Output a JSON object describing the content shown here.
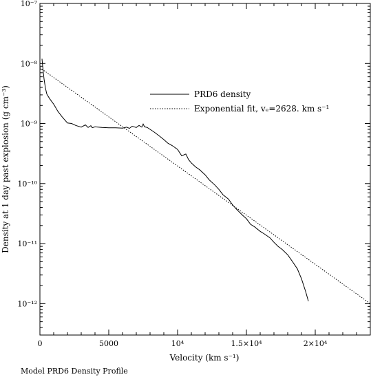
{
  "caption": "Model PRD6 Density Profile",
  "chart_data": {
    "type": "line",
    "title": "",
    "xlabel": "Velocity (km s⁻¹)",
    "ylabel": "Density at 1 day past explosion (g cm⁻³)",
    "xlim": [
      0,
      24000
    ],
    "ylim": [
      3e-13,
      1e-07
    ],
    "yscale": "log",
    "grid": false,
    "legend_position": "upper-right",
    "x_ticks": [
      {
        "value": 0,
        "label": "0"
      },
      {
        "value": 5000,
        "label": "5000"
      },
      {
        "value": 10000,
        "label": "10⁴"
      },
      {
        "value": 15000,
        "label": "1.5×10⁴"
      },
      {
        "value": 20000,
        "label": "2×10⁴"
      }
    ],
    "y_ticks": [
      {
        "value": 1e-12,
        "label": "10⁻¹²"
      },
      {
        "value": 1e-11,
        "label": "10⁻¹¹"
      },
      {
        "value": 1e-10,
        "label": "10⁻¹⁰"
      },
      {
        "value": 1e-09,
        "label": "10⁻⁹"
      },
      {
        "value": 1e-08,
        "label": "10⁻⁸"
      },
      {
        "value": 1e-07,
        "label": "10⁻⁷"
      }
    ],
    "series": [
      {
        "name": "PRD6 density",
        "style": "solid",
        "color": "#000000",
        "x": [
          150,
          200,
          300,
          400,
          500,
          700,
          1000,
          1300,
          1600,
          1800,
          2000,
          2300,
          2600,
          3000,
          3300,
          3500,
          3700,
          3800,
          4000,
          4500,
          5000,
          5500,
          6000,
          6300,
          6500,
          6700,
          7000,
          7200,
          7400,
          7500,
          7600,
          7800,
          8000,
          8300,
          8600,
          9000,
          9300,
          9600,
          10000,
          10300,
          10600,
          10800,
          11000,
          11300,
          11600,
          12000,
          12300,
          12700,
          13000,
          13300,
          13700,
          14000,
          14300,
          14700,
          15000,
          15300,
          15600,
          16000,
          16300,
          16700,
          17000,
          17300,
          17600,
          18000,
          18300,
          18700,
          19000,
          19300,
          19500
        ],
        "y": [
          1.2e-08,
          9e-09,
          5.5e-09,
          3.9e-09,
          3.1e-09,
          2.6e-09,
          2.1e-09,
          1.6e-09,
          1.3e-09,
          1.15e-09,
          1.02e-09,
          1e-09,
          9.3e-10,
          8.7e-10,
          9.5e-10,
          8.6e-10,
          9.2e-10,
          8.5e-10,
          8.8e-10,
          8.6e-10,
          8.5e-10,
          8.5e-10,
          8.4e-10,
          8.7e-10,
          8.3e-10,
          9e-10,
          8.6e-10,
          9.3e-10,
          8.7e-10,
          9.8e-10,
          8.8e-10,
          8.6e-10,
          8e-10,
          7.2e-10,
          6.4e-10,
          5.4e-10,
          4.7e-10,
          4.3e-10,
          3.7e-10,
          2.9e-10,
          3.1e-10,
          2.5e-10,
          2.2e-10,
          1.9e-10,
          1.7e-10,
          1.4e-10,
          1.15e-10,
          9.5e-11,
          8e-11,
          6.5e-11,
          5.5e-11,
          4.4e-11,
          3.7e-11,
          3e-11,
          2.6e-11,
          2.1e-11,
          1.9e-11,
          1.6e-11,
          1.45e-11,
          1.25e-11,
          1.05e-11,
          9e-12,
          8e-12,
          6.5e-12,
          5.2e-12,
          3.8e-12,
          2.6e-12,
          1.6e-12,
          1.1e-12
        ]
      },
      {
        "name": "Exponential fit, vₑ=2628. km s⁻¹",
        "style": "dotted",
        "color": "#000000",
        "x": [
          0,
          24000
        ],
        "y": [
          8.5e-09,
          1e-12
        ]
      }
    ]
  }
}
